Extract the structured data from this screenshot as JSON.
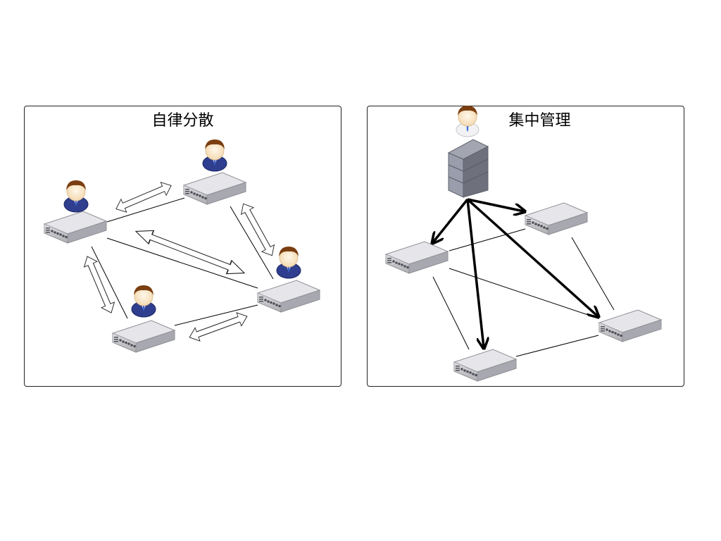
{
  "panels": {
    "left": {
      "title": "自律分散"
    },
    "right": {
      "title": "集中管理"
    }
  },
  "colors": {
    "switch_top": "#e3e3e6",
    "switch_side": "#b9b9bf",
    "person_suit": "#2c3f8f",
    "person_hair": "#8b4a12",
    "server": "#8a8d98",
    "arrow_fill": "#ffffff",
    "line": "#000000"
  },
  "icons": {
    "switch": "network-switch-icon",
    "person": "user-icon",
    "server": "server-icon"
  }
}
